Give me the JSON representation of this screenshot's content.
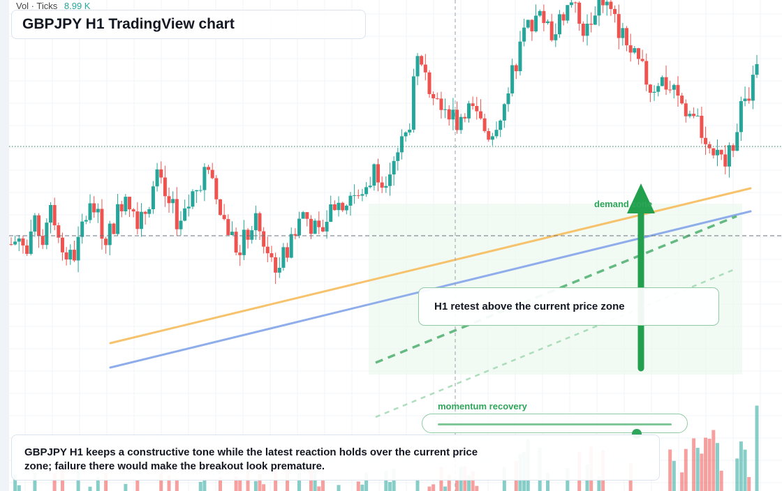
{
  "volume_legend": {
    "label": "Vol · Ticks",
    "value": "8.99 K"
  },
  "title": "GBPJPY H1 TradingView chart",
  "annotations": {
    "demand_zone_label": "demand zone",
    "retest_label": "H1 retest above the current price zone",
    "momentum_label": "momentum recovery",
    "summary": "GBPJPY H1 keeps a constructive tone while the latest reaction holds over the current price zone; failure there would make the breakout look premature."
  },
  "momentum": {
    "level": 0.85
  },
  "colors": {
    "bull": "#26a69a",
    "bear": "#ef5350",
    "orange_trendline": "#f6c26b",
    "blue_trendline": "#8eadea",
    "annotation_green": "#2ea55a"
  },
  "chart_data": {
    "type": "candlestick",
    "price_scale": {
      "low": 6,
      "high": 100
    },
    "series": [
      {
        "name": "",
        "ohlc": []
      }
    ],
    "seed_path": [
      42,
      44,
      39,
      47,
      43,
      50,
      45,
      38,
      40,
      48,
      52,
      46,
      44,
      49,
      55,
      51,
      47,
      53,
      58,
      54,
      50,
      46,
      52,
      57,
      60,
      55,
      49,
      45,
      40,
      44,
      48,
      43,
      39,
      36,
      41,
      46,
      50,
      47,
      44,
      49,
      53,
      51,
      55,
      52,
      57,
      61,
      58,
      63,
      66,
      70,
      86,
      83,
      81,
      78,
      75,
      72,
      76,
      74,
      71,
      69,
      73,
      77,
      85,
      92,
      95,
      98,
      96,
      93,
      99,
      101,
      97,
      94,
      100,
      103,
      98,
      95,
      91,
      87,
      84,
      80,
      83,
      81,
      78,
      76,
      73,
      71,
      68,
      63,
      60,
      66,
      74,
      80,
      84
    ]
  }
}
